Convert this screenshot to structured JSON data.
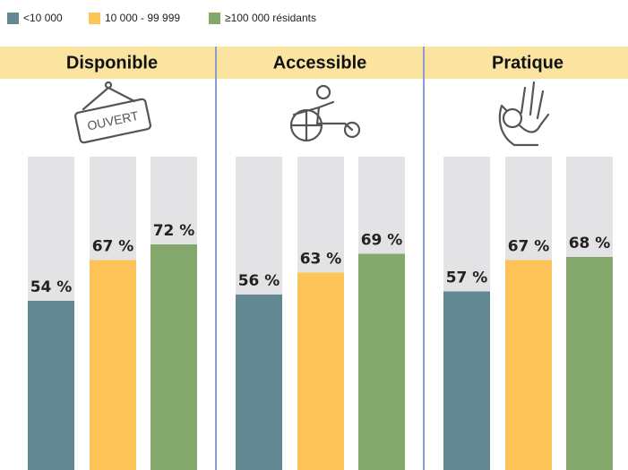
{
  "chart_data": {
    "type": "bar",
    "categories": [
      "Disponible",
      "Accessible",
      "Pratique"
    ],
    "series": [
      {
        "name": "<10 000",
        "color": "#628892",
        "values": [
          54,
          56,
          57
        ],
        "value_labels": [
          "54 %",
          "56 %",
          "57 %"
        ]
      },
      {
        "name": "10 000 - 99 999",
        "color": "#fdc457",
        "values": [
          67,
          63,
          67
        ],
        "value_labels": [
          "67 %",
          "63 %",
          "67 %"
        ]
      },
      {
        "name": "≥100 000 résidants",
        "color": "#84a76c",
        "values": [
          72,
          69,
          68
        ],
        "value_labels": [
          "72 %",
          "69 %",
          "68 %"
        ]
      }
    ],
    "ylim": [
      0,
      100
    ],
    "annotations": [
      "OUVERT"
    ],
    "header_color": "#fbe3a0",
    "track_color": "#e3e3e5"
  }
}
